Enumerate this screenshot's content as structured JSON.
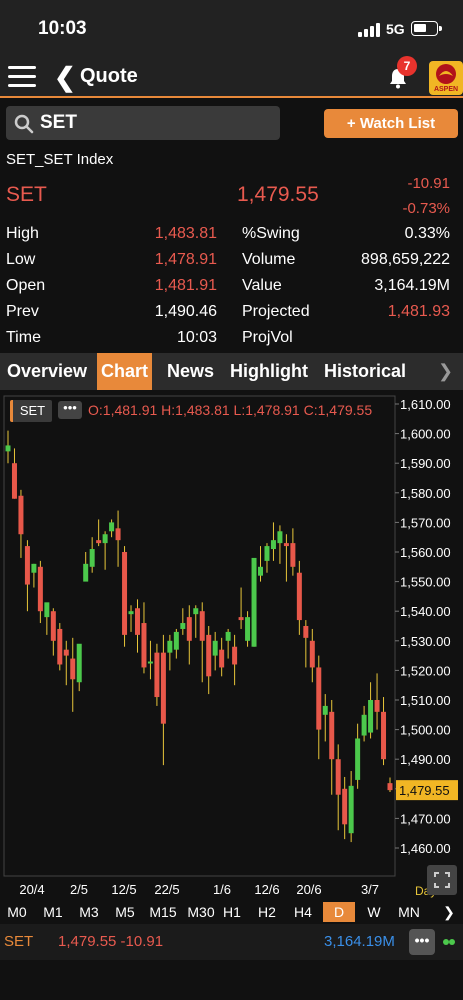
{
  "status": {
    "time": "10:03",
    "network": "5G"
  },
  "nav": {
    "title": "Quote",
    "notifications": "7",
    "logo_text": "ASPEN"
  },
  "search": {
    "value": "SET",
    "watchlist_label": "+ Watch List"
  },
  "quote": {
    "index_name": "SET_SET Index",
    "symbol": "SET",
    "price": "1,479.55",
    "change": "-10.91",
    "pct_change": "-0.73%"
  },
  "stats": {
    "high_label": "High",
    "high": "1,483.81",
    "low_label": "Low",
    "low": "1,478.91",
    "open_label": "Open",
    "open": "1,481.91",
    "prev_label": "Prev",
    "prev": "1,490.46",
    "time_label": "Time",
    "time": "10:03",
    "swing_label": "%Swing",
    "swing": "0.33%",
    "volume_label": "Volume",
    "volume": "898,659,222",
    "value_label": "Value",
    "value": "3,164.19M",
    "projected_label": "Projected",
    "projected": "1,481.93",
    "projvol_label": "ProjVol",
    "projvol": ""
  },
  "tabs": [
    "Overview",
    "Chart",
    "News",
    "Highlight",
    "Historical"
  ],
  "chart_header": {
    "symbol": "SET",
    "dots": "•••",
    "ohlc": "O:1,481.91  H:1,483.81  L:1,478.91  C:1,479.55",
    "corner_label": "Day"
  },
  "chart_data": {
    "type": "candlestick",
    "y_ticks": [
      "1,610.00",
      "1,600.00",
      "1,590.00",
      "1,580.00",
      "1,570.00",
      "1,560.00",
      "1,550.00",
      "1,540.00",
      "1,530.00",
      "1,520.00",
      "1,510.00",
      "1,500.00",
      "1,490.00",
      "1,480.00",
      "1,470.00",
      "1,460.00"
    ],
    "ylim": [
      1455,
      1612
    ],
    "x_ticks": [
      "20/4",
      "2/5",
      "12/5",
      "22/5",
      "1/6",
      "12/6",
      "20/6",
      "3/7"
    ],
    "current_price_label": "1,479.55",
    "current_price": 1479.55,
    "up_color": "#4cc94c",
    "down_color": "#e8584a",
    "wick_color": "#e8c63a",
    "candles": [
      [
        1594,
        1601,
        1596,
        1590
      ],
      [
        1590,
        1595,
        1578,
        1578
      ],
      [
        1579,
        1581,
        1566,
        1558
      ],
      [
        1562,
        1564,
        1549,
        1540
      ],
      [
        1553,
        1556,
        1556,
        1548
      ],
      [
        1555,
        1557,
        1540,
        1536
      ],
      [
        1538,
        1541,
        1543,
        1532
      ],
      [
        1540,
        1541,
        1530,
        1525
      ],
      [
        1534,
        1536,
        1522,
        1520
      ],
      [
        1527,
        1530,
        1525,
        1515
      ],
      [
        1524,
        1531,
        1517,
        1506
      ],
      [
        1516,
        1526,
        1529,
        1513
      ],
      [
        1550,
        1560,
        1556,
        1552
      ],
      [
        1555,
        1565,
        1561,
        1553
      ],
      [
        1564,
        1571,
        1563,
        1562
      ],
      [
        1563,
        1567,
        1566,
        1554
      ],
      [
        1567,
        1571,
        1570,
        1565
      ],
      [
        1568,
        1574,
        1564,
        1555
      ],
      [
        1560,
        1562,
        1532,
        1528
      ],
      [
        1539,
        1542,
        1540,
        1533
      ],
      [
        1541,
        1544,
        1532,
        1526
      ],
      [
        1536,
        1543,
        1521,
        1519
      ],
      [
        1523,
        1530,
        1523,
        1517
      ],
      [
        1526,
        1529,
        1511,
        1508
      ],
      [
        1526,
        1532,
        1502,
        1488
      ],
      [
        1526,
        1532,
        1530,
        1520
      ],
      [
        1527,
        1534,
        1533,
        1524
      ],
      [
        1534,
        1541,
        1536,
        1532
      ],
      [
        1538,
        1542,
        1530,
        1522
      ],
      [
        1539,
        1542,
        1541,
        1531
      ],
      [
        1540,
        1543,
        1530,
        1516
      ],
      [
        1532,
        1535,
        1518,
        1512
      ],
      [
        1525,
        1533,
        1530,
        1520
      ],
      [
        1527,
        1531,
        1521,
        1518
      ],
      [
        1530,
        1534,
        1533,
        1524
      ],
      [
        1528,
        1532,
        1522,
        1515
      ],
      [
        1538,
        1548,
        1537,
        1534
      ],
      [
        1530,
        1540,
        1538,
        1528
      ],
      [
        1528,
        1548,
        1558,
        1528
      ],
      [
        1552,
        1562,
        1555,
        1550
      ],
      [
        1557,
        1563,
        1562,
        1553
      ],
      [
        1561,
        1570,
        1564,
        1557
      ],
      [
        1563,
        1569,
        1567,
        1556
      ],
      [
        1563,
        1566,
        1562,
        1550
      ],
      [
        1563,
        1568,
        1555,
        1552
      ],
      [
        1553,
        1557,
        1537,
        1532
      ],
      [
        1535,
        1537,
        1531,
        1521
      ],
      [
        1530,
        1534,
        1521,
        1516
      ],
      [
        1521,
        1525,
        1500,
        1490
      ],
      [
        1505,
        1512,
        1508,
        1496
      ],
      [
        1506,
        1510,
        1490,
        1478
      ],
      [
        1490,
        1495,
        1478,
        1466
      ],
      [
        1480,
        1484,
        1468,
        1463
      ],
      [
        1465,
        1486,
        1481,
        1462
      ],
      [
        1483,
        1502,
        1497,
        1480
      ],
      [
        1498,
        1508,
        1505,
        1496
      ],
      [
        1499,
        1516,
        1510,
        1497
      ],
      [
        1510,
        1519,
        1506,
        1500
      ],
      [
        1506,
        1511,
        1490,
        1488
      ],
      [
        1481.91,
        1483.81,
        1479.55,
        1478.91
      ]
    ]
  },
  "timeframes": [
    "M0",
    "M1",
    "M3",
    "M5",
    "M15",
    "M30",
    "H1",
    "H2",
    "H4",
    "D",
    "W",
    "MN"
  ],
  "active_timeframe": "D",
  "bottom": {
    "symbol": "SET",
    "quote": "1,479.55 -10.91",
    "value": "3,164.19M",
    "dots": "•••"
  }
}
